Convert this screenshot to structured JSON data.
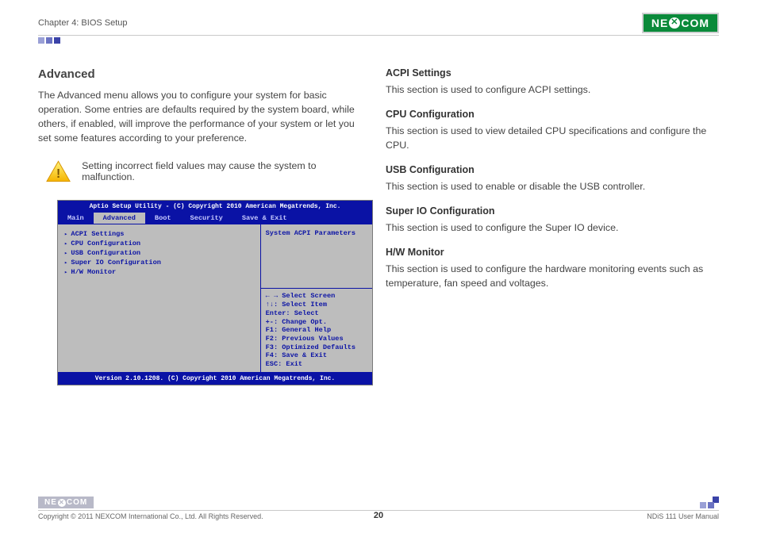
{
  "header": {
    "chapter": "Chapter 4: BIOS Setup",
    "logo_text_left": "NE",
    "logo_text_right": "COM",
    "accent_colors": [
      "#9aa0d6",
      "#6b73c2",
      "#3a43a8"
    ]
  },
  "left": {
    "title": "Advanced",
    "intro": "The Advanced menu allows you to configure your system for basic operation. Some entries are defaults required by the system board, while others, if enabled, will improve the performance of your system or let you set some features according to your preference.",
    "warning": "Setting incorrect field values may cause the system to malfunction."
  },
  "bios": {
    "title": "Aptio Setup Utility - (C) Copyright 2010 American Megatrends, Inc.",
    "tabs": [
      "Main",
      "Advanced",
      "Boot",
      "Security",
      "Save & Exit"
    ],
    "active_tab": "Advanced",
    "menu_items": [
      "ACPI Settings",
      "CPU Configuration",
      "USB Configuration",
      "Super IO Configuration",
      "H/W Monitor"
    ],
    "side_title": "System ACPI Parameters",
    "help_lines": [
      "← →   Select Screen",
      "↑↓:    Select Item",
      "Enter: Select",
      "+-:    Change Opt.",
      "F1:   General Help",
      "F2:   Previous Values",
      "F3:   Optimized Defaults",
      "F4:   Save & Exit",
      "ESC: Exit"
    ],
    "footer": "Version 2.10.1208. (C) Copyright 2010 American Megatrends, Inc.",
    "colors": {
      "bg": "#0a12a5",
      "panel": "#bdbdbd",
      "text": "#0a12a5"
    }
  },
  "right": {
    "sections": [
      {
        "title": "ACPI Settings",
        "body": "This section is used to configure ACPI settings."
      },
      {
        "title": "CPU Configuration",
        "body": "This section is used to view detailed CPU specifications and configure the CPU."
      },
      {
        "title": "USB Configuration",
        "body": "This section is used to enable or disable the USB controller."
      },
      {
        "title": "Super IO Configuration",
        "body": "This section is used to configure the Super IO device."
      },
      {
        "title": "H/W Monitor",
        "body": "This section is used to configure the hardware monitoring events such as temperature, fan speed and voltages."
      }
    ]
  },
  "footer": {
    "copyright": "Copyright © 2011 NEXCOM International Co., Ltd. All Rights Reserved.",
    "page_number": "20",
    "manual": "NDiS 111 User Manual",
    "sq_colors": [
      "#9aa0d6",
      "#6b73c2",
      "#3a43a8"
    ]
  }
}
